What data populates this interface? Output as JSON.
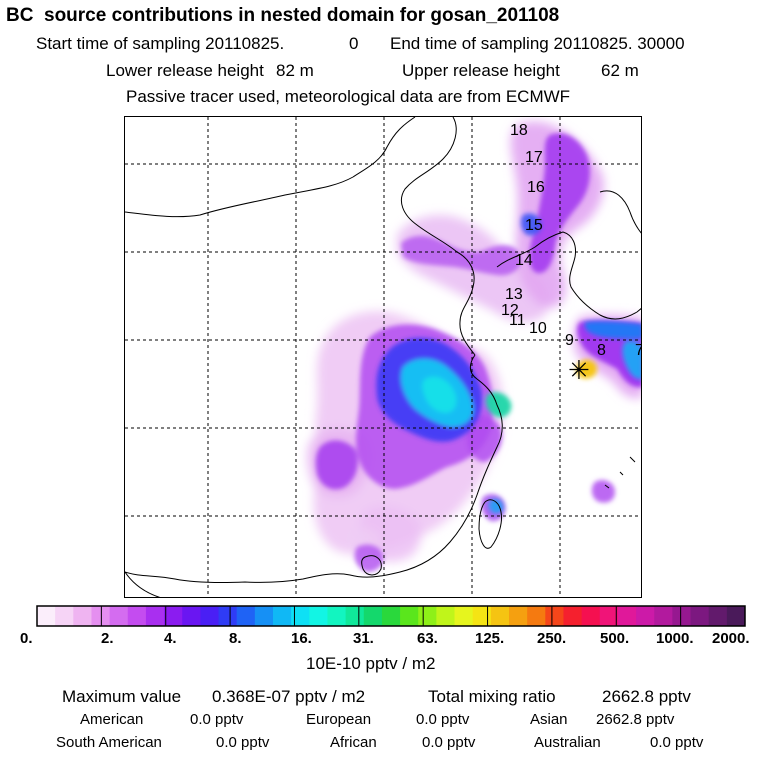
{
  "header": {
    "title": "BC  source contributions in nested domain for gosan_201108",
    "start_label": "Start time of sampling 20110825.",
    "start_hour": "0",
    "end_label": "End time of sampling 20110825. 30000",
    "lower_label": "Lower release height",
    "lower_value": "82 m",
    "upper_label": "Upper release height",
    "upper_value": "62 m",
    "tracer_note": "Passive tracer used, meteorological data are from ECMWF"
  },
  "map": {
    "trajectory_labels": [
      "18",
      "17",
      "16",
      "15",
      "14",
      "13",
      "12",
      "11",
      "10",
      "9",
      "8",
      "7"
    ],
    "receptor_symbol": "✳"
  },
  "colorbar": {
    "colors": [
      "#fbeefb",
      "#f6d4f6",
      "#efb4f1",
      "#e58ff0",
      "#d46cf0",
      "#c44cf0",
      "#a92ff0",
      "#8b1cf0",
      "#6a16f2",
      "#4a1ff5",
      "#2f3cf5",
      "#1f63f5",
      "#1690f5",
      "#10b8f5",
      "#0ee0f5",
      "#12f5e4",
      "#12f5c0",
      "#10e89a",
      "#14d86c",
      "#2ad83c",
      "#5ae61c",
      "#8ef018",
      "#c0f51a",
      "#e6f51e",
      "#f5e414",
      "#f5c412",
      "#f5a010",
      "#f57a10",
      "#f5461a",
      "#f5202e",
      "#f51050",
      "#f01478",
      "#e0189a",
      "#cc1aa8",
      "#b21a9e",
      "#961890",
      "#7c1880",
      "#621a6c",
      "#4a1a5a"
    ],
    "tick_labels": [
      "0.",
      "2.",
      "4.",
      "8.",
      "16.",
      "31.",
      "63.",
      "125.",
      "250.",
      "500.",
      "1000.",
      "2000."
    ],
    "unit": "10E-10 pptv / m2"
  },
  "stats": {
    "max_label": "Maximum value",
    "max_value": "0.368E-07 pptv / m2",
    "total_label": "Total mixing ratio",
    "total_value": "2662.8 pptv",
    "regions": [
      {
        "name": "American",
        "value": "0.0 pptv"
      },
      {
        "name": "European",
        "value": "0.0 pptv"
      },
      {
        "name": "Asian",
        "value": "2662.8 pptv"
      },
      {
        "name": "South American",
        "value": "0.0 pptv"
      },
      {
        "name": "African",
        "value": "0.0 pptv"
      },
      {
        "name": "Australian",
        "value": "0.0 pptv"
      }
    ]
  }
}
